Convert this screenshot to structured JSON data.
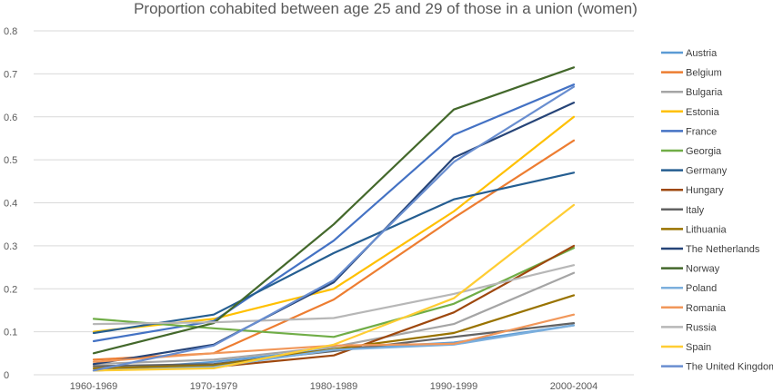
{
  "chart_data": {
    "type": "line",
    "title": "Proportion cohabited between age 25 and 29 of those in a union (women)",
    "xlabel": "",
    "ylabel": "",
    "categories": [
      "1960-1969",
      "1970-1979",
      "1980-1989",
      "1990-1999",
      "2000-2004"
    ],
    "ylim": [
      0,
      0.8
    ],
    "yticks": [
      "0",
      "0.1",
      "0.2",
      "0.3",
      "0.4",
      "0.5",
      "0.6",
      "0.7",
      "0.8"
    ],
    "grid": true,
    "legend_position": "right",
    "series": [
      {
        "name": "Austria",
        "color": "#5b9bd5",
        "values": [
          0.01,
          0.03,
          0.06,
          0.075,
          0.115
        ]
      },
      {
        "name": "Belgium",
        "color": "#ed7d31",
        "values": [
          0.035,
          0.05,
          0.175,
          0.365,
          0.545
        ]
      },
      {
        "name": "Bulgaria",
        "color": "#a5a5a5",
        "values": [
          0.025,
          0.035,
          0.065,
          0.118,
          0.237
        ]
      },
      {
        "name": "Estonia",
        "color": "#ffc000",
        "values": [
          0.1,
          0.13,
          0.2,
          0.38,
          0.6
        ]
      },
      {
        "name": "France",
        "color": "#4472c4",
        "values": [
          0.078,
          0.125,
          0.312,
          0.558,
          0.675
        ]
      },
      {
        "name": "Georgia",
        "color": "#70ad47",
        "values": [
          0.13,
          0.108,
          0.088,
          0.165,
          0.295
        ]
      },
      {
        "name": "Germany",
        "color": "#255e91",
        "values": [
          0.097,
          0.14,
          0.283,
          0.408,
          0.47
        ]
      },
      {
        "name": "Hungary",
        "color": "#9e480e",
        "values": [
          0.01,
          0.018,
          0.045,
          0.145,
          0.3
        ]
      },
      {
        "name": "Italy",
        "color": "#636363",
        "values": [
          0.02,
          0.025,
          0.055,
          0.088,
          0.12
        ]
      },
      {
        "name": "Lithuania",
        "color": "#997300",
        "values": [
          0.015,
          0.022,
          0.06,
          0.097,
          0.185
        ]
      },
      {
        "name": "The Netherlands",
        "color": "#264478",
        "values": [
          0.025,
          0.07,
          0.215,
          0.505,
          0.633
        ]
      },
      {
        "name": "Norway",
        "color": "#43682b",
        "values": [
          0.05,
          0.12,
          0.35,
          0.617,
          0.715
        ]
      },
      {
        "name": "Poland",
        "color": "#7cafdd",
        "values": [
          0.01,
          0.018,
          0.058,
          0.07,
          0.115
        ]
      },
      {
        "name": "Romania",
        "color": "#f1975a",
        "values": [
          0.03,
          0.05,
          0.068,
          0.072,
          0.14
        ]
      },
      {
        "name": "Russia",
        "color": "#b7b7b7",
        "values": [
          0.118,
          0.122,
          0.132,
          0.188,
          0.255
        ]
      },
      {
        "name": "Spain",
        "color": "#ffcd33",
        "values": [
          0.01,
          0.015,
          0.07,
          0.178,
          0.395
        ]
      },
      {
        "name": "The United Kingdom",
        "color": "#698ed0",
        "values": [
          0.01,
          0.068,
          0.22,
          0.495,
          0.67
        ]
      }
    ]
  }
}
